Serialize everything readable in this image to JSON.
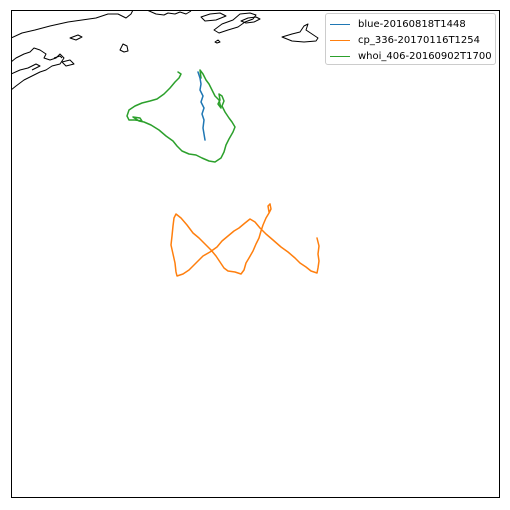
{
  "chart_data": {
    "type": "line",
    "title": "",
    "xlabel": "",
    "ylabel": "",
    "grid": false,
    "legend_placement": "top-right",
    "series": [
      {
        "name": "blue-20160818T1448",
        "color": "#1f77b4"
      },
      {
        "name": "cp_336-20170116T1254",
        "color": "#ff7f0e"
      },
      {
        "name": "whoi_406-20160902T1700",
        "color": "#2ca02c"
      }
    ]
  }
}
